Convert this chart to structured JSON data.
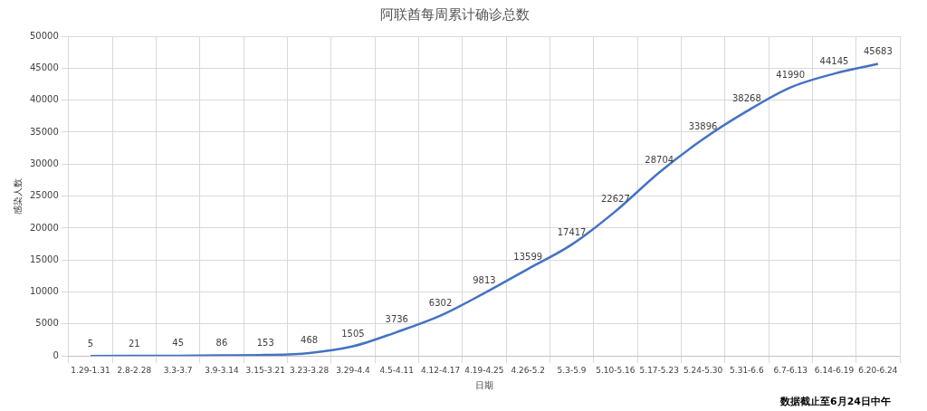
{
  "chart_data": {
    "type": "line",
    "title": "阿联酋每周累计确诊总数",
    "xlabel": "日期",
    "ylabel": "感染人数",
    "categories": [
      "1.29-1.31",
      "2.8-2.28",
      "3.3-3.7",
      "3.9-3.14",
      "3.15-3.21",
      "3.23-3.28",
      "3.29-4.4",
      "4.5-4.11",
      "4.12-4.17",
      "4.19-4.25",
      "4.26-5.2",
      "5.3-5.9",
      "5.10-5.16",
      "5.17-5.23",
      "5.24-5.30",
      "5.31-6.6",
      "6.7-6.13",
      "6.14-6.19",
      "6.20-6.24"
    ],
    "series": [
      {
        "color": "#4472c4",
        "values": [
          5,
          21,
          45,
          86,
          153,
          468,
          1505,
          3736,
          6302,
          9813,
          13599,
          17417,
          22627,
          28704,
          33896,
          38268,
          41990,
          44145,
          45683
        ]
      }
    ],
    "ylim": [
      0,
      50000
    ],
    "yticks": [
      0,
      5000,
      10000,
      15000,
      20000,
      25000,
      30000,
      35000,
      40000,
      45000,
      50000
    ],
    "grid": true,
    "legend": false,
    "marker": "none",
    "line_style": "solid",
    "data_labels": true,
    "annotations": [
      "数据截止至6月24日中午"
    ]
  }
}
